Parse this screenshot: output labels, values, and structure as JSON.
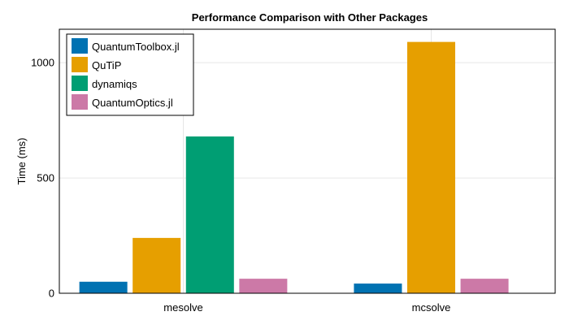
{
  "chart_data": {
    "type": "bar",
    "title": "Performance Comparison with Other Packages",
    "xlabel": "",
    "ylabel": "Time (ms)",
    "categories": [
      "mesolve",
      "mcsolve"
    ],
    "ylim": [
      0,
      1145
    ],
    "yticks": [
      0,
      500,
      1000
    ],
    "grid": true,
    "legend_position": "top-left",
    "series": [
      {
        "name": "QuantumToolbox.jl",
        "color": "#0072b2",
        "values": [
          50,
          42
        ]
      },
      {
        "name": "QuTiP",
        "color": "#e69f00",
        "values": [
          240,
          1090
        ]
      },
      {
        "name": "dynamiqs",
        "color": "#009e73",
        "values": [
          680,
          null
        ]
      },
      {
        "name": "QuantumOptics.jl",
        "color": "#cc79a7",
        "values": [
          63,
          63
        ]
      }
    ]
  }
}
